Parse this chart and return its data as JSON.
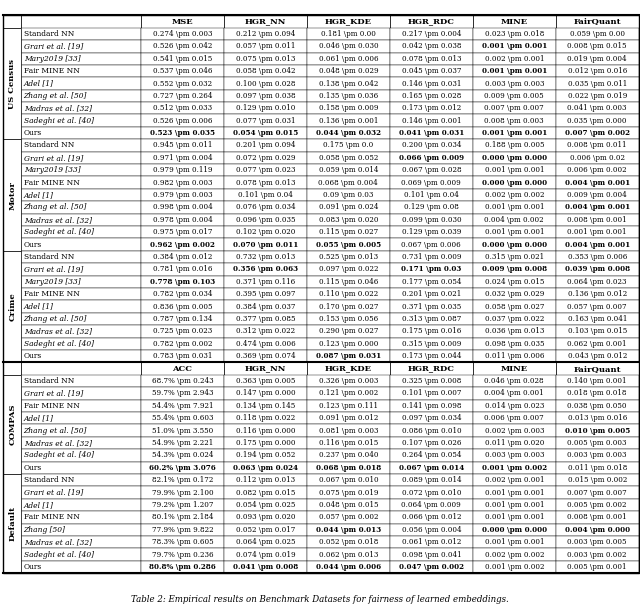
{
  "caption": "Table 2: Empirical results on Benchmark Datasets for fairness of learned embeddings.",
  "header1": [
    "",
    "MSE",
    "HGR_NN",
    "HGR_KDE",
    "HGR_RDC",
    "MINE",
    "FairQuant"
  ],
  "header2": [
    "",
    "ACC",
    "HGR_NN",
    "HGR_KDE",
    "HGR_RDC",
    "MINE",
    "FairQuant"
  ],
  "col_keys": [
    "MSE",
    "HGR_NN",
    "HGR_KDE",
    "HGR_RDC",
    "MINE",
    "FairQuant"
  ],
  "sections": [
    {
      "name": "US Census",
      "header_set": 1,
      "rows": [
        {
          "label": "Standard NN",
          "MSE": "0.274 \\pm 0.003",
          "HGR_NN": "0.212 \\pm 0.094",
          "HGR_KDE": "0.181 \\pm 0.00",
          "HGR_RDC": "0.217 \\pm 0.004",
          "MINE": "0.023 \\pm 0.018",
          "FairQuant": "0.059 \\pm 0.00"
        },
        {
          "label": "Grari et al. [19]",
          "MSE": "0.526 \\pm 0.042",
          "HGR_NN": "0.057 \\pm 0.011",
          "HGR_KDE": "0.046 \\pm 0.030",
          "HGR_RDC": "0.042 \\pm 0.038",
          "MINE": "B0.001 \\pm 0.001",
          "FairQuant": "0.008 \\pm 0.015"
        },
        {
          "label": "Mary2019 [33]",
          "MSE": "0.541 \\pm 0.015",
          "HGR_NN": "0.075 \\pm 0.013",
          "HGR_KDE": "0.061 \\pm 0.006",
          "HGR_RDC": "0.078 \\pm 0.013",
          "MINE": "0.002 \\pm 0.001",
          "FairQuant": "0.019 \\pm 0.004"
        },
        {
          "label": "Fair MINE NN",
          "MSE": "0.537 \\pm 0.046",
          "HGR_NN": "0.058 \\pm 0.042",
          "HGR_KDE": "0.048 \\pm 0.029",
          "HGR_RDC": "0.045 \\pm 0.037",
          "MINE": "B0.001 \\pm 0.001",
          "FairQuant": "0.012 \\pm 0.016"
        },
        {
          "label": "Adel [1]",
          "MSE": "0.552 \\pm 0.032",
          "HGR_NN": "0.100 \\pm 0.028",
          "HGR_KDE": "0.138 \\pm 0.042",
          "HGR_RDC": "0.146 \\pm 0.031",
          "MINE": "0.003 \\pm 0.003",
          "FairQuant": "0.035 \\pm 0.011"
        },
        {
          "label": "Zhang et al. [50]",
          "MSE": "0.727 \\pm 0.264",
          "HGR_NN": "0.097 \\pm 0.038",
          "HGR_KDE": "0.135 \\pm 0.036",
          "HGR_RDC": "0.165 \\pm 0.028",
          "MINE": "0.009 \\pm 0.005",
          "FairQuant": "0.022 \\pm 0.019"
        },
        {
          "label": "Madras et al. [32]",
          "MSE": "0.512 \\pm 0.033",
          "HGR_NN": "0.129 \\pm 0.010",
          "HGR_KDE": "0.158 \\pm 0.009",
          "HGR_RDC": "0.173 \\pm 0.012",
          "MINE": "0.007 \\pm 0.007",
          "FairQuant": "0.041 \\pm 0.003"
        },
        {
          "label": "Sadeghi et al. [40]",
          "MSE": "0.526 \\pm 0.006",
          "HGR_NN": "0.077 \\pm 0.031",
          "HGR_KDE": "0.136 \\pm 0.001",
          "HGR_RDC": "0.146 \\pm 0.001",
          "MINE": "0.008 \\pm 0.003",
          "FairQuant": "0.035 \\pm 0.000"
        },
        {
          "label": "Ours",
          "MSE": "B0.523 \\pm 0.035",
          "HGR_NN": "B0.054 \\pm 0.015",
          "HGR_KDE": "B0.044 \\pm 0.032",
          "HGR_RDC": "B0.041 \\pm 0.031",
          "MINE": "B0.001 \\pm 0.001",
          "FairQuant": "B0.007 \\pm 0.002"
        }
      ]
    },
    {
      "name": "Motor",
      "header_set": 1,
      "rows": [
        {
          "label": "Standard NN",
          "MSE": "0.945 \\pm 0.011",
          "HGR_NN": "0.201 \\pm 0.094",
          "HGR_KDE": "0.175 \\pm 0.0",
          "HGR_RDC": "0.200 \\pm 0.034",
          "MINE": "0.188 \\pm 0.005",
          "FairQuant": "0.008 \\pm 0.011"
        },
        {
          "label": "Grari et al. [19]",
          "MSE": "0.971 \\pm 0.004",
          "HGR_NN": "0.072 \\pm 0.029",
          "HGR_KDE": "0.058 \\pm 0.052",
          "HGR_RDC": "B0.066 \\pm 0.009",
          "MINE": "B0.000 \\pm 0.000",
          "FairQuant": "0.006 \\pm 0.02"
        },
        {
          "label": "Mary2019 [33]",
          "MSE": "0.979 \\pm 0.119",
          "HGR_NN": "0.077 \\pm 0.023",
          "HGR_KDE": "0.059 \\pm 0.014",
          "HGR_RDC": "0.067 \\pm 0.028",
          "MINE": "0.001 \\pm 0.001",
          "FairQuant": "0.006 \\pm 0.002"
        },
        {
          "label": "Fair MINE NN",
          "MSE": "0.982 \\pm 0.003",
          "HGR_NN": "0.078 \\pm 0.013",
          "HGR_KDE": "0.068 \\pm 0.004",
          "HGR_RDC": "0.069 \\pm 0.009",
          "MINE": "B0.000 \\pm 0.000",
          "FairQuant": "B0.004 \\pm 0.001"
        },
        {
          "label": "Adel [1]",
          "MSE": "0.979 \\pm 0.003",
          "HGR_NN": "0.101 \\pm 0.04",
          "HGR_KDE": "0.09 \\pm 0.03",
          "HGR_RDC": "0.101 \\pm 0.04",
          "MINE": "0.002 \\pm 0.002",
          "FairQuant": "0.009 \\pm 0.004"
        },
        {
          "label": "Zhang et al. [50]",
          "MSE": "0.998 \\pm 0.004",
          "HGR_NN": "0.076 \\pm 0.034",
          "HGR_KDE": "0.091 \\pm 0.024",
          "HGR_RDC": "0.129 \\pm 0.08",
          "MINE": "0.001 \\pm 0.001",
          "FairQuant": "B0.004 \\pm 0.001"
        },
        {
          "label": "Madras et al. [32]",
          "MSE": "0.978 \\pm 0.004",
          "HGR_NN": "0.096 \\pm 0.035",
          "HGR_KDE": "0.083 \\pm 0.020",
          "HGR_RDC": "0.099 \\pm 0.030",
          "MINE": "0.004 \\pm 0.002",
          "FairQuant": "0.008 \\pm 0.001"
        },
        {
          "label": "Sadeghi et al. [40]",
          "MSE": "0.975 \\pm 0.017",
          "HGR_NN": "0.102 \\pm 0.020",
          "HGR_KDE": "0.115 \\pm 0.027",
          "HGR_RDC": "0.129 \\pm 0.039",
          "MINE": "0.001 \\pm 0.001",
          "FairQuant": "0.001 \\pm 0.001"
        },
        {
          "label": "Ours",
          "MSE": "B0.962 \\pm 0.002",
          "HGR_NN": "B0.070 \\pm 0.011",
          "HGR_KDE": "B0.055 \\pm 0.005",
          "HGR_RDC": "0.067 \\pm 0.006",
          "MINE": "B0.000 \\pm 0.000",
          "FairQuant": "B0.004 \\pm 0.001"
        }
      ]
    },
    {
      "name": "Crime",
      "header_set": 1,
      "rows": [
        {
          "label": "Standard NN",
          "MSE": "0.384 \\pm 0.012",
          "HGR_NN": "0.732 \\pm 0.013",
          "HGR_KDE": "0.525 \\pm 0.013",
          "HGR_RDC": "0.731 \\pm 0.009",
          "MINE": "0.315 \\pm 0.021",
          "FairQuant": "0.353 \\pm 0.006"
        },
        {
          "label": "Grari et al. [19]",
          "MSE": "0.781 \\pm 0.016",
          "HGR_NN": "B0.356 \\pm 0.063",
          "HGR_KDE": "0.097 \\pm 0.022",
          "HGR_RDC": "B0.171 \\pm 0.03",
          "MINE": "B0.009 \\pm 0.008",
          "FairQuant": "B0.039 \\pm 0.008"
        },
        {
          "label": "Mary2019 [33]",
          "MSE": "B0.778 \\pm 0.103",
          "HGR_NN": "0.371 \\pm 0.116",
          "HGR_KDE": "0.115 \\pm 0.046",
          "HGR_RDC": "0.177 \\pm 0.054",
          "MINE": "0.024 \\pm 0.015",
          "FairQuant": "0.064 \\pm 0.023"
        },
        {
          "label": "Fair MINE NN",
          "MSE": "0.782 \\pm 0.034",
          "HGR_NN": "0.395 \\pm 0.097",
          "HGR_KDE": "0.110 \\pm 0.022",
          "HGR_RDC": "0.201 \\pm 0.021",
          "MINE": "0.032 \\pm 0.029",
          "FairQuant": "0.136 \\pm 0.012"
        },
        {
          "label": "Adel [1]",
          "MSE": "0.836 \\pm 0.005",
          "HGR_NN": "0.384 \\pm 0.037",
          "HGR_KDE": "0.170 \\pm 0.027",
          "HGR_RDC": "0.371 \\pm 0.035",
          "MINE": "0.058 \\pm 0.027",
          "FairQuant": "0.057 \\pm 0.007"
        },
        {
          "label": "Zhang et al. [50]",
          "MSE": "0.787 \\pm 0.134",
          "HGR_NN": "0.377 \\pm 0.085",
          "HGR_KDE": "0.153 \\pm 0.056",
          "HGR_RDC": "0.313 \\pm 0.087",
          "MINE": "0.037 \\pm 0.022",
          "FairQuant": "0.163 \\pm 0.041"
        },
        {
          "label": "Madras et al. [32]",
          "MSE": "0.725 \\pm 0.023",
          "HGR_NN": "0.312 \\pm 0.022",
          "HGR_KDE": "0.290 \\pm 0.027",
          "HGR_RDC": "0.175 \\pm 0.016",
          "MINE": "0.036 \\pm 0.013",
          "FairQuant": "0.103 \\pm 0.015"
        },
        {
          "label": "Sadeghi et al. [40]",
          "MSE": "0.782 \\pm 0.002",
          "HGR_NN": "0.474 \\pm 0.006",
          "HGR_KDE": "0.123 \\pm 0.000",
          "HGR_RDC": "0.315 \\pm 0.009",
          "MINE": "0.098 \\pm 0.035",
          "FairQuant": "0.062 \\pm 0.001"
        },
        {
          "label": "Ours",
          "MSE": "0.783 \\pm 0.031",
          "HGR_NN": "0.369 \\pm 0.074",
          "HGR_KDE": "B0.087 \\pm 0.031",
          "HGR_RDC": "0.173 \\pm 0.044",
          "MINE": "0.011 \\pm 0.006",
          "FairQuant": "0.043 \\pm 0.012"
        }
      ]
    },
    {
      "name": "COMPAS",
      "header_set": 2,
      "rows": [
        {
          "label": "Standard NN",
          "MSE": "68.7% \\pm 0.243",
          "HGR_NN": "0.363 \\pm 0.005",
          "HGR_KDE": "0.326 \\pm 0.003",
          "HGR_RDC": "0.325 \\pm 0.008",
          "MINE": "0.046 \\pm 0.028",
          "FairQuant": "0.140 \\pm 0.001"
        },
        {
          "label": "Grari et al. [19]",
          "MSE": "59.7% \\pm 2.943",
          "HGR_NN": "0.147 \\pm 0.000",
          "HGR_KDE": "0.121 \\pm 0.002",
          "HGR_RDC": "0.101 \\pm 0.007",
          "MINE": "0.004 \\pm 0.001",
          "FairQuant": "0.018 \\pm 0.018"
        },
        {
          "label": "Fair MINE NN",
          "MSE": "54.4% \\pm 7.921",
          "HGR_NN": "0.134 \\pm 0.145",
          "HGR_KDE": "0.123 \\pm 0.111",
          "HGR_RDC": "0.141 \\pm 0.098",
          "MINE": "0.014 \\pm 0.023",
          "FairQuant": "0.038 \\pm 0.050"
        },
        {
          "label": "Adel [1]",
          "MSE": "55.4% \\pm 0.603",
          "HGR_NN": "0.118 \\pm 0.022",
          "HGR_KDE": "0.091 \\pm 0.012",
          "HGR_RDC": "0.097 \\pm 0.034",
          "MINE": "0.006 \\pm 0.007",
          "FairQuant": "0.013 \\pm 0.016"
        },
        {
          "label": "Zhang et al. [50]",
          "MSE": "51.0% \\pm 3.550",
          "HGR_NN": "0.116 \\pm 0.000",
          "HGR_KDE": "0.081 \\pm 0.003",
          "HGR_RDC": "0.086 \\pm 0.010",
          "MINE": "0.002 \\pm 0.003",
          "FairQuant": "B0.010 \\pm 0.005"
        },
        {
          "label": "Madras et al. [32]",
          "MSE": "54.9% \\pm 2.221",
          "HGR_NN": "0.175 \\pm 0.000",
          "HGR_KDE": "0.116 \\pm 0.015",
          "HGR_RDC": "0.107 \\pm 0.026",
          "MINE": "0.011 \\pm 0.020",
          "FairQuant": "0.005 \\pm 0.003"
        },
        {
          "label": "Sadeghi et al. [40]",
          "MSE": "54.3% \\pm 0.024",
          "HGR_NN": "0.194 \\pm 0.052",
          "HGR_KDE": "0.237 \\pm 0.040",
          "HGR_RDC": "0.264 \\pm 0.054",
          "MINE": "0.003 \\pm 0.003",
          "FairQuant": "0.003 \\pm 0.003"
        },
        {
          "label": "Ours",
          "MSE": "B60.2% \\pm 3.076",
          "HGR_NN": "B0.063 \\pm 0.024",
          "HGR_KDE": "B0.068 \\pm 0.018",
          "HGR_RDC": "B0.067 \\pm 0.014",
          "MINE": "B0.001 \\pm 0.002",
          "FairQuant": "0.011 \\pm 0.018"
        }
      ]
    },
    {
      "name": "Default",
      "header_set": 2,
      "rows": [
        {
          "label": "Standard NN",
          "MSE": "82.1% \\pm 0.172",
          "HGR_NN": "0.112 \\pm 0.013",
          "HGR_KDE": "0.067 \\pm 0.010",
          "HGR_RDC": "0.089 \\pm 0.014",
          "MINE": "0.002 \\pm 0.001",
          "FairQuant": "0.015 \\pm 0.002"
        },
        {
          "label": "Grari et al. [19]",
          "MSE": "79.9% \\pm 2.100",
          "HGR_NN": "0.082 \\pm 0.015",
          "HGR_KDE": "0.075 \\pm 0.019",
          "HGR_RDC": "0.072 \\pm 0.010",
          "MINE": "0.001 \\pm 0.001",
          "FairQuant": "0.007 \\pm 0.007"
        },
        {
          "label": "Adel [1]",
          "MSE": "79.2% \\pm 1.207",
          "HGR_NN": "0.054 \\pm 0.025",
          "HGR_KDE": "0.048 \\pm 0.015",
          "HGR_RDC": "0.064 \\pm 0.009",
          "MINE": "0.001 \\pm 0.001",
          "FairQuant": "0.005 \\pm 0.002"
        },
        {
          "label": "Fair MINE NN",
          "MSE": "80.1% \\pm 2.184",
          "HGR_NN": "0.093 \\pm 0.020",
          "HGR_KDE": "0.057 \\pm 0.002",
          "HGR_RDC": "0.066 \\pm 0.012",
          "MINE": "0.001 \\pm 0.001",
          "FairQuant": "0.008 \\pm 0.001"
        },
        {
          "label": "Zhang [50]",
          "MSE": "77.9% \\pm 9.822",
          "HGR_NN": "0.052 \\pm 0.017",
          "HGR_KDE": "B0.044 \\pm 0.013",
          "HGR_RDC": "0.056 \\pm 0.004",
          "MINE": "B0.000 \\pm 0.000",
          "FairQuant": "B0.004 \\pm 0.000"
        },
        {
          "label": "Madras et al. [32]",
          "MSE": "78.3% \\pm 0.605",
          "HGR_NN": "0.064 \\pm 0.025",
          "HGR_KDE": "0.052 \\pm 0.018",
          "HGR_RDC": "0.061 \\pm 0.012",
          "MINE": "0.001 \\pm 0.001",
          "FairQuant": "0.003 \\pm 0.005"
        },
        {
          "label": "Sadeghi et al. [40]",
          "MSE": "79.7% \\pm 0.236",
          "HGR_NN": "0.074 \\pm 0.019",
          "HGR_KDE": "0.062 \\pm 0.013",
          "HGR_RDC": "0.098 \\pm 0.041",
          "MINE": "0.002 \\pm 0.002",
          "FairQuant": "0.003 \\pm 0.002"
        },
        {
          "label": "Ours",
          "MSE": "B80.8% \\pm 0.286",
          "HGR_NN": "B0.041 \\pm 0.008",
          "HGR_KDE": "B0.044 \\pm 0.006",
          "HGR_RDC": "B0.047 \\pm 0.002",
          "MINE": "0.001 \\pm 0.002",
          "FairQuant": "0.005 \\pm 0.001"
        }
      ]
    }
  ]
}
